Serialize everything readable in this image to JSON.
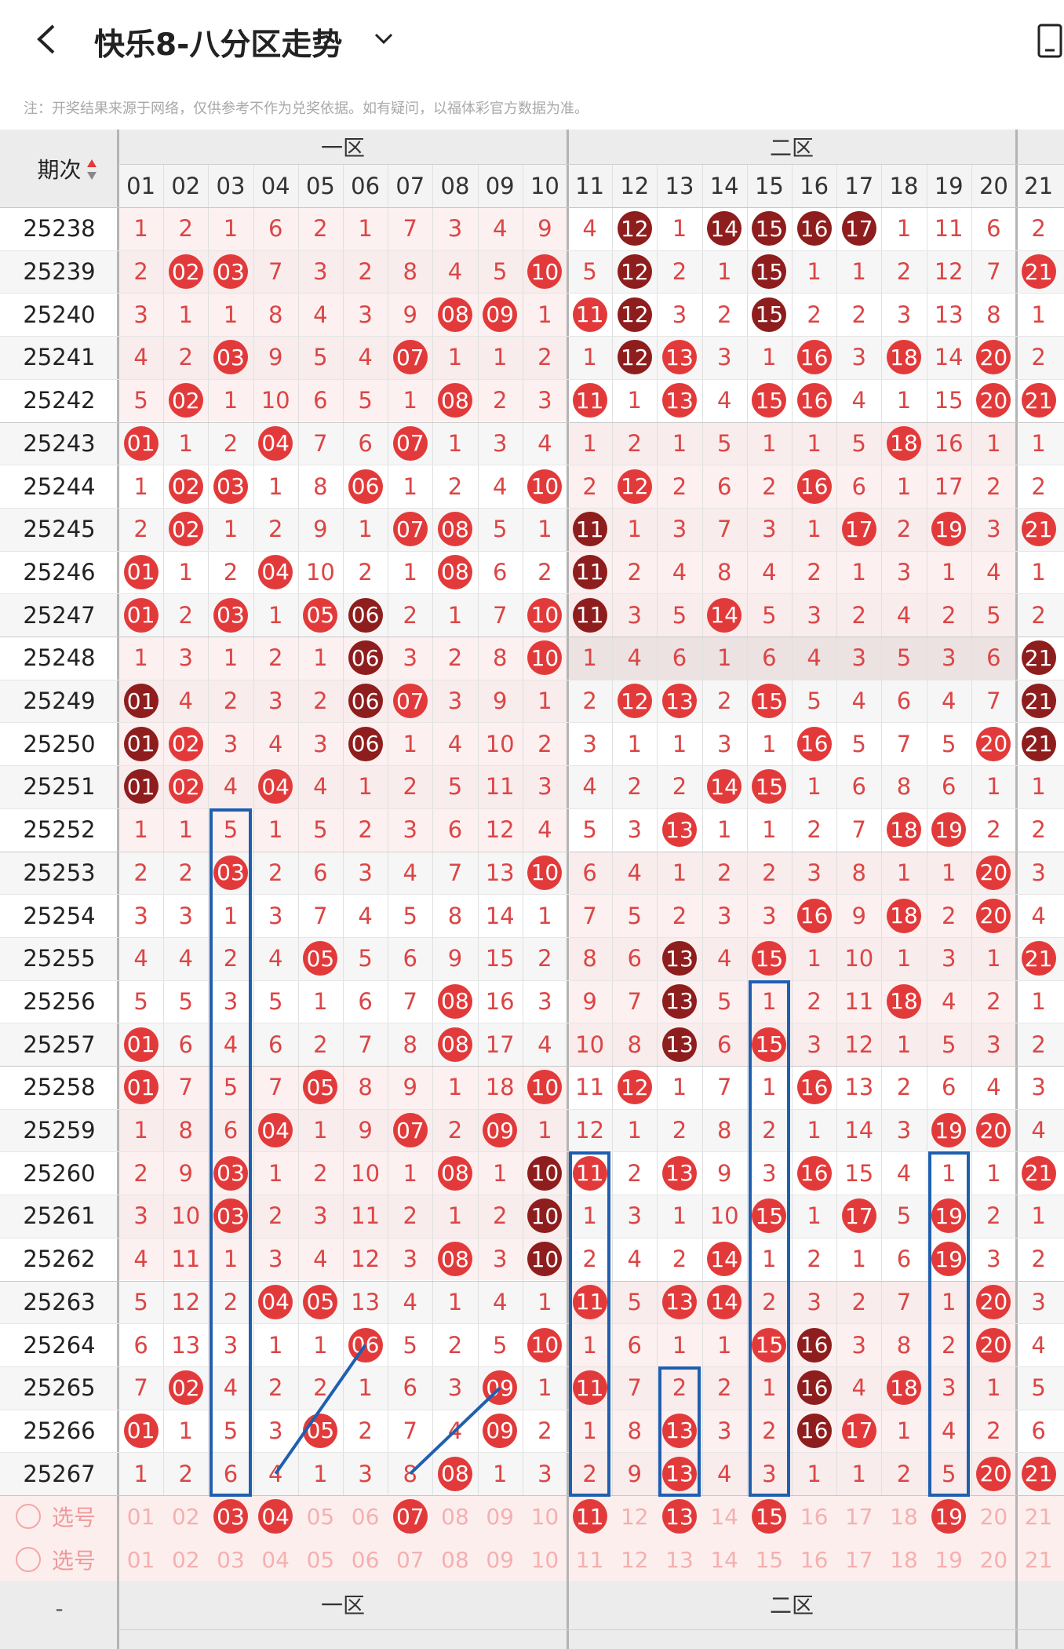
{
  "header": {
    "title": "快乐8-八分区走势"
  },
  "note": "注：开奖结果来源于网络，仅供参考不作为兑奖依据。如有疑问，以福体彩官方数据为准。",
  "zones": [
    "一区",
    "二区"
  ],
  "period_label": "期次",
  "columns": [
    "01",
    "02",
    "03",
    "04",
    "05",
    "06",
    "07",
    "08",
    "09",
    "10",
    "11",
    "12",
    "13",
    "14",
    "15",
    "16",
    "17",
    "18",
    "19",
    "20",
    "21"
  ],
  "rows": [
    {
      "p": "25238",
      "v": [
        1,
        2,
        1,
        6,
        2,
        1,
        7,
        3,
        4,
        9,
        4,
        "12",
        1,
        "14",
        "15",
        "16",
        "17",
        1,
        11,
        6,
        2
      ],
      "d": [
        11,
        13,
        14,
        15,
        16
      ]
    },
    {
      "p": "25239",
      "v": [
        2,
        "02",
        "03",
        7,
        3,
        2,
        8,
        4,
        5,
        "10",
        5,
        "12",
        2,
        1,
        "15",
        1,
        1,
        2,
        12,
        7,
        "21"
      ],
      "d": [
        11,
        14
      ]
    },
    {
      "p": "25240",
      "v": [
        3,
        1,
        1,
        8,
        4,
        3,
        9,
        "08",
        "09",
        1,
        "11",
        "12",
        3,
        2,
        "15",
        2,
        2,
        3,
        13,
        8,
        1
      ],
      "d": [
        11,
        14
      ]
    },
    {
      "p": "25241",
      "v": [
        4,
        2,
        "03",
        9,
        5,
        4,
        "07",
        1,
        1,
        2,
        1,
        "12",
        "13",
        3,
        1,
        "16",
        3,
        "18",
        14,
        "20",
        2
      ],
      "d": [
        11
      ]
    },
    {
      "p": "25242",
      "v": [
        5,
        "02",
        1,
        10,
        6,
        5,
        1,
        "08",
        2,
        3,
        "11",
        1,
        "13",
        4,
        "15",
        "16",
        4,
        1,
        15,
        "20",
        "21"
      ],
      "d": []
    },
    {
      "p": "25243",
      "v": [
        "01",
        1,
        2,
        "04",
        7,
        6,
        "07",
        1,
        3,
        4,
        1,
        2,
        1,
        5,
        1,
        1,
        5,
        "18",
        16,
        1,
        1
      ],
      "d": []
    },
    {
      "p": "25244",
      "v": [
        1,
        "02",
        "03",
        1,
        8,
        "06",
        1,
        2,
        4,
        "10",
        2,
        "12",
        2,
        6,
        2,
        "16",
        6,
        1,
        17,
        2,
        2
      ],
      "d": []
    },
    {
      "p": "25245",
      "v": [
        2,
        "02",
        1,
        2,
        9,
        1,
        "07",
        "08",
        5,
        1,
        "11",
        1,
        3,
        7,
        3,
        1,
        "17",
        2,
        "19",
        3,
        "21"
      ],
      "d": [
        10
      ]
    },
    {
      "p": "25246",
      "v": [
        "01",
        1,
        2,
        "04",
        10,
        2,
        1,
        "08",
        6,
        2,
        "11",
        2,
        4,
        8,
        4,
        2,
        1,
        3,
        1,
        4,
        1
      ],
      "d": [
        10
      ]
    },
    {
      "p": "25247",
      "v": [
        "01",
        2,
        "03",
        1,
        "05",
        "06",
        2,
        1,
        7,
        "10",
        "11",
        3,
        5,
        "14",
        5,
        3,
        2,
        4,
        2,
        5,
        2
      ],
      "d": [
        5,
        10
      ]
    },
    {
      "p": "25248",
      "v": [
        1,
        3,
        1,
        2,
        1,
        "06",
        3,
        2,
        8,
        "10",
        1,
        4,
        6,
        1,
        6,
        4,
        3,
        5,
        3,
        6,
        "21"
      ],
      "d": [
        5,
        20
      ],
      "hi": true
    },
    {
      "p": "25249",
      "v": [
        "01",
        4,
        2,
        3,
        2,
        "06",
        "07",
        3,
        9,
        1,
        2,
        "12",
        "13",
        2,
        "15",
        5,
        4,
        6,
        4,
        7,
        "21"
      ],
      "d": [
        0,
        5,
        20
      ]
    },
    {
      "p": "25250",
      "v": [
        "01",
        "02",
        3,
        4,
        3,
        "06",
        1,
        4,
        10,
        2,
        3,
        1,
        1,
        3,
        1,
        "16",
        5,
        7,
        5,
        "20",
        "21"
      ],
      "d": [
        0,
        5,
        20
      ]
    },
    {
      "p": "25251",
      "v": [
        "01",
        "02",
        4,
        "04",
        4,
        1,
        2,
        5,
        11,
        3,
        4,
        2,
        2,
        "14",
        "15",
        1,
        6,
        8,
        6,
        1,
        1
      ],
      "d": [
        0
      ]
    },
    {
      "p": "25252",
      "v": [
        1,
        1,
        5,
        1,
        5,
        2,
        3,
        6,
        12,
        4,
        5,
        3,
        "13",
        1,
        1,
        2,
        7,
        "18",
        "19",
        2,
        2
      ],
      "d": []
    },
    {
      "p": "25253",
      "v": [
        2,
        2,
        "03",
        2,
        6,
        3,
        4,
        7,
        13,
        "10",
        6,
        4,
        1,
        2,
        2,
        3,
        8,
        1,
        1,
        "20",
        3
      ],
      "d": []
    },
    {
      "p": "25254",
      "v": [
        3,
        3,
        1,
        3,
        7,
        4,
        5,
        8,
        14,
        1,
        7,
        5,
        2,
        3,
        3,
        "16",
        9,
        "18",
        2,
        "20",
        4
      ],
      "d": []
    },
    {
      "p": "25255",
      "v": [
        4,
        4,
        2,
        4,
        "05",
        5,
        6,
        9,
        15,
        2,
        8,
        6,
        "13",
        4,
        "15",
        1,
        10,
        1,
        3,
        1,
        "21"
      ],
      "d": [
        12
      ]
    },
    {
      "p": "25256",
      "v": [
        5,
        5,
        3,
        5,
        1,
        6,
        7,
        "08",
        16,
        3,
        9,
        7,
        "13",
        5,
        1,
        2,
        11,
        "18",
        4,
        2,
        1
      ],
      "d": [
        12
      ]
    },
    {
      "p": "25257",
      "v": [
        "01",
        6,
        4,
        6,
        2,
        7,
        8,
        "08",
        17,
        4,
        10,
        8,
        "13",
        6,
        "15",
        3,
        12,
        1,
        5,
        3,
        2
      ],
      "d": [
        12
      ]
    },
    {
      "p": "25258",
      "v": [
        "01",
        7,
        5,
        7,
        "05",
        8,
        9,
        1,
        18,
        "10",
        11,
        "12",
        1,
        7,
        1,
        "16",
        13,
        2,
        6,
        4,
        3
      ],
      "d": []
    },
    {
      "p": "25259",
      "v": [
        1,
        8,
        6,
        "04",
        1,
        9,
        "07",
        2,
        "09",
        1,
        12,
        1,
        2,
        8,
        2,
        1,
        14,
        3,
        "19",
        "20",
        4
      ],
      "d": []
    },
    {
      "p": "25260",
      "v": [
        2,
        9,
        "03",
        1,
        2,
        10,
        1,
        "08",
        1,
        "10",
        "11",
        2,
        "13",
        9,
        3,
        "16",
        15,
        4,
        1,
        1,
        "21"
      ],
      "d": [
        9
      ]
    },
    {
      "p": "25261",
      "v": [
        3,
        10,
        "03",
        2,
        3,
        11,
        2,
        1,
        2,
        "10",
        1,
        3,
        1,
        10,
        "15",
        1,
        "17",
        5,
        "19",
        2,
        1
      ],
      "d": [
        9
      ]
    },
    {
      "p": "25262",
      "v": [
        4,
        11,
        1,
        3,
        4,
        12,
        3,
        "08",
        3,
        "10",
        2,
        4,
        2,
        "14",
        1,
        2,
        1,
        6,
        "19",
        3,
        2
      ],
      "d": [
        9
      ]
    },
    {
      "p": "25263",
      "v": [
        5,
        12,
        2,
        "04",
        "05",
        13,
        4,
        1,
        4,
        1,
        "11",
        5,
        "13",
        "14",
        2,
        3,
        2,
        7,
        1,
        "20",
        3
      ],
      "d": []
    },
    {
      "p": "25264",
      "v": [
        6,
        13,
        3,
        1,
        1,
        "06",
        5,
        2,
        5,
        "10",
        1,
        6,
        1,
        1,
        "15",
        "16",
        3,
        8,
        2,
        "20",
        4
      ],
      "d": [
        15
      ]
    },
    {
      "p": "25265",
      "v": [
        7,
        "02",
        4,
        2,
        2,
        1,
        6,
        3,
        "09",
        1,
        "11",
        7,
        2,
        2,
        1,
        "16",
        4,
        "18",
        3,
        1,
        5
      ],
      "d": [
        15
      ]
    },
    {
      "p": "25266",
      "v": [
        "01",
        1,
        5,
        3,
        "05",
        2,
        7,
        4,
        "09",
        2,
        1,
        8,
        "13",
        3,
        2,
        "16",
        "17",
        1,
        4,
        2,
        6
      ],
      "d": [
        15
      ]
    },
    {
      "p": "25267",
      "v": [
        1,
        2,
        6,
        4,
        1,
        3,
        8,
        "08",
        1,
        3,
        2,
        9,
        "13",
        4,
        3,
        1,
        1,
        2,
        5,
        "20",
        "21"
      ],
      "d": []
    }
  ],
  "select_label": "选号",
  "select_rows": [
    {
      "picked": [
        "03",
        "04",
        "07",
        "11",
        "13",
        "15",
        "19"
      ]
    },
    {
      "picked": []
    }
  ],
  "footer": {
    "dash": "-",
    "zones": [
      "一区",
      "二区"
    ]
  }
}
